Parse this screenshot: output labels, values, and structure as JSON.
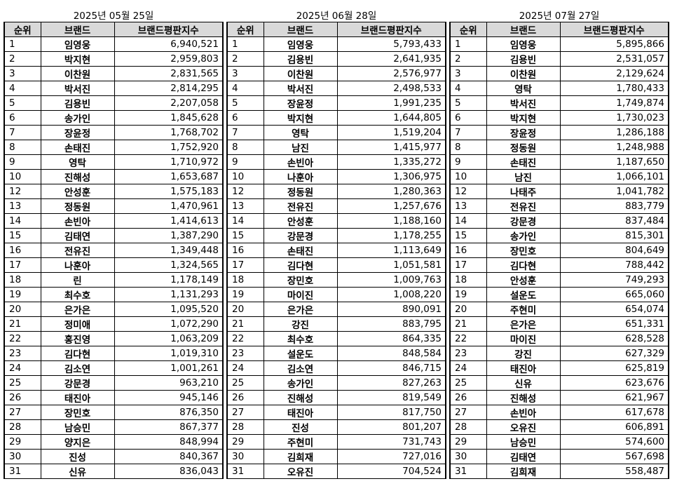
{
  "headers": {
    "rank": "순위",
    "brand": "브랜드",
    "score": "브랜드평판지수"
  },
  "periods": [
    {
      "date": "2025년 05월 25일",
      "rows": [
        [
          "1",
          "임영웅",
          "6,940,521"
        ],
        [
          "2",
          "박지현",
          "2,959,803"
        ],
        [
          "3",
          "이찬원",
          "2,831,565"
        ],
        [
          "4",
          "박서진",
          "2,814,295"
        ],
        [
          "5",
          "김용빈",
          "2,207,058"
        ],
        [
          "6",
          "송가인",
          "1,845,628"
        ],
        [
          "7",
          "장윤정",
          "1,768,702"
        ],
        [
          "8",
          "손태진",
          "1,752,920"
        ],
        [
          "9",
          "영탁",
          "1,710,972"
        ],
        [
          "10",
          "진해성",
          "1,653,687"
        ],
        [
          "12",
          "안성훈",
          "1,575,183"
        ],
        [
          "13",
          "정동원",
          "1,470,961"
        ],
        [
          "14",
          "손빈아",
          "1,414,613"
        ],
        [
          "15",
          "김태연",
          "1,387,290"
        ],
        [
          "16",
          "전유진",
          "1,349,448"
        ],
        [
          "17",
          "나훈아",
          "1,324,565"
        ],
        [
          "18",
          "린",
          "1,178,149"
        ],
        [
          "19",
          "최수호",
          "1,131,293"
        ],
        [
          "20",
          "은가은",
          "1,095,520"
        ],
        [
          "21",
          "정미애",
          "1,072,290"
        ],
        [
          "22",
          "홍진영",
          "1,063,209"
        ],
        [
          "23",
          "김다현",
          "1,019,310"
        ],
        [
          "24",
          "김소연",
          "1,001,261"
        ],
        [
          "25",
          "강문경",
          "963,210"
        ],
        [
          "26",
          "태진아",
          "945,146"
        ],
        [
          "27",
          "장민호",
          "876,350"
        ],
        [
          "28",
          "남승민",
          "867,377"
        ],
        [
          "29",
          "양지은",
          "848,994"
        ],
        [
          "30",
          "진성",
          "840,367"
        ],
        [
          "31",
          "신유",
          "836,043"
        ]
      ]
    },
    {
      "date": "2025년 06월 28일",
      "rows": [
        [
          "1",
          "임영웅",
          "5,793,433"
        ],
        [
          "2",
          "김용빈",
          "2,641,935"
        ],
        [
          "3",
          "이찬원",
          "2,576,977"
        ],
        [
          "4",
          "박서진",
          "2,498,533"
        ],
        [
          "5",
          "장윤정",
          "1,991,235"
        ],
        [
          "6",
          "박지현",
          "1,644,805"
        ],
        [
          "7",
          "영탁",
          "1,519,204"
        ],
        [
          "8",
          "남진",
          "1,415,977"
        ],
        [
          "9",
          "손빈아",
          "1,335,272"
        ],
        [
          "10",
          "나훈아",
          "1,306,975"
        ],
        [
          "12",
          "정동원",
          "1,280,363"
        ],
        [
          "13",
          "전유진",
          "1,257,676"
        ],
        [
          "14",
          "안성훈",
          "1,188,160"
        ],
        [
          "15",
          "강문경",
          "1,178,255"
        ],
        [
          "16",
          "손태진",
          "1,113,649"
        ],
        [
          "17",
          "김다현",
          "1,051,581"
        ],
        [
          "18",
          "장민호",
          "1,009,763"
        ],
        [
          "19",
          "마이진",
          "1,008,220"
        ],
        [
          "20",
          "은가은",
          "890,091"
        ],
        [
          "21",
          "강진",
          "883,795"
        ],
        [
          "22",
          "최수호",
          "864,335"
        ],
        [
          "23",
          "설운도",
          "848,584"
        ],
        [
          "24",
          "김소연",
          "846,715"
        ],
        [
          "25",
          "송가인",
          "827,263"
        ],
        [
          "26",
          "진해성",
          "819,549"
        ],
        [
          "27",
          "태진아",
          "817,750"
        ],
        [
          "28",
          "진성",
          "801,207"
        ],
        [
          "29",
          "주현미",
          "731,743"
        ],
        [
          "30",
          "김희재",
          "727,016"
        ],
        [
          "31",
          "오유진",
          "704,524"
        ]
      ]
    },
    {
      "date": "2025년 07월 27일",
      "rows": [
        [
          "1",
          "임영웅",
          "5,895,866"
        ],
        [
          "2",
          "김용빈",
          "2,531,057"
        ],
        [
          "3",
          "이찬원",
          "2,129,624"
        ],
        [
          "4",
          "영탁",
          "1,780,433"
        ],
        [
          "5",
          "박서진",
          "1,749,874"
        ],
        [
          "6",
          "박지현",
          "1,730,023"
        ],
        [
          "7",
          "장윤정",
          "1,286,188"
        ],
        [
          "8",
          "정동원",
          "1,248,988"
        ],
        [
          "9",
          "손태진",
          "1,187,650"
        ],
        [
          "10",
          "남진",
          "1,066,101"
        ],
        [
          "12",
          "나태주",
          "1,041,782"
        ],
        [
          "13",
          "전유진",
          "883,779"
        ],
        [
          "14",
          "강문경",
          "837,484"
        ],
        [
          "15",
          "송가인",
          "815,301"
        ],
        [
          "16",
          "장민호",
          "804,649"
        ],
        [
          "17",
          "김다현",
          "788,442"
        ],
        [
          "18",
          "안성훈",
          "749,293"
        ],
        [
          "19",
          "설운도",
          "665,060"
        ],
        [
          "20",
          "주현미",
          "654,074"
        ],
        [
          "21",
          "은가은",
          "651,331"
        ],
        [
          "22",
          "마이진",
          "628,528"
        ],
        [
          "23",
          "강진",
          "627,329"
        ],
        [
          "24",
          "태진아",
          "625,819"
        ],
        [
          "25",
          "신유",
          "623,676"
        ],
        [
          "26",
          "진해성",
          "621,967"
        ],
        [
          "27",
          "손빈아",
          "617,678"
        ],
        [
          "28",
          "오유진",
          "606,891"
        ],
        [
          "29",
          "남승민",
          "574,600"
        ],
        [
          "30",
          "김태연",
          "567,698"
        ],
        [
          "31",
          "김희재",
          "558,487"
        ]
      ]
    }
  ]
}
